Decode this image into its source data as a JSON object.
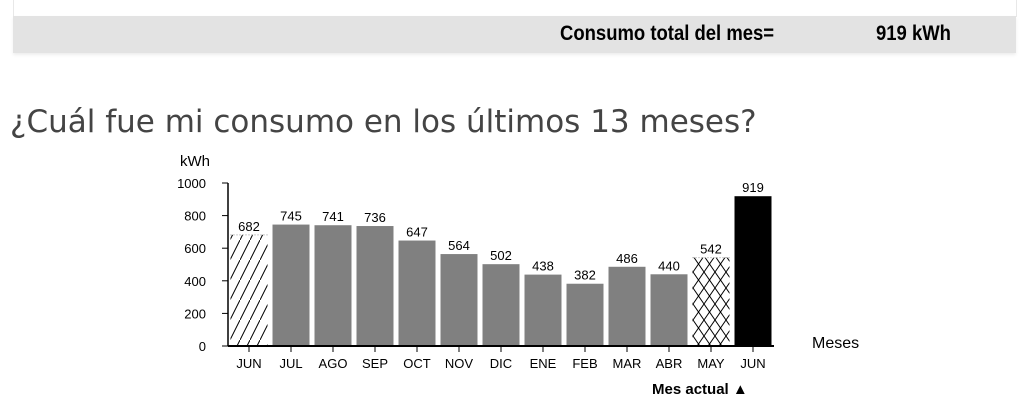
{
  "summary": {
    "label": "Consumo total del mes=",
    "value": "919 kWh"
  },
  "section_title": "¿Cuál fue mi consumo en los últimos 13 meses?",
  "chart_data": {
    "type": "bar",
    "ylabel": "kWh",
    "xlabel": "Meses",
    "ylim": [
      0,
      1000
    ],
    "yticks": [
      0,
      200,
      400,
      600,
      800,
      1000
    ],
    "categories": [
      "JUN",
      "JUL",
      "AGO",
      "SEP",
      "OCT",
      "NOV",
      "DIC",
      "ENE",
      "FEB",
      "MAR",
      "ABR",
      "MAY",
      "JUN"
    ],
    "values": [
      682,
      745,
      741,
      736,
      647,
      564,
      502,
      438,
      382,
      486,
      440,
      542,
      919
    ],
    "styles": [
      "hatch",
      "solid",
      "solid",
      "solid",
      "solid",
      "solid",
      "solid",
      "solid",
      "solid",
      "solid",
      "solid",
      "crosshatch",
      "current"
    ],
    "colors": {
      "solid": "#808080",
      "current": "#000000"
    },
    "annotation": "Mes actual ▲"
  }
}
